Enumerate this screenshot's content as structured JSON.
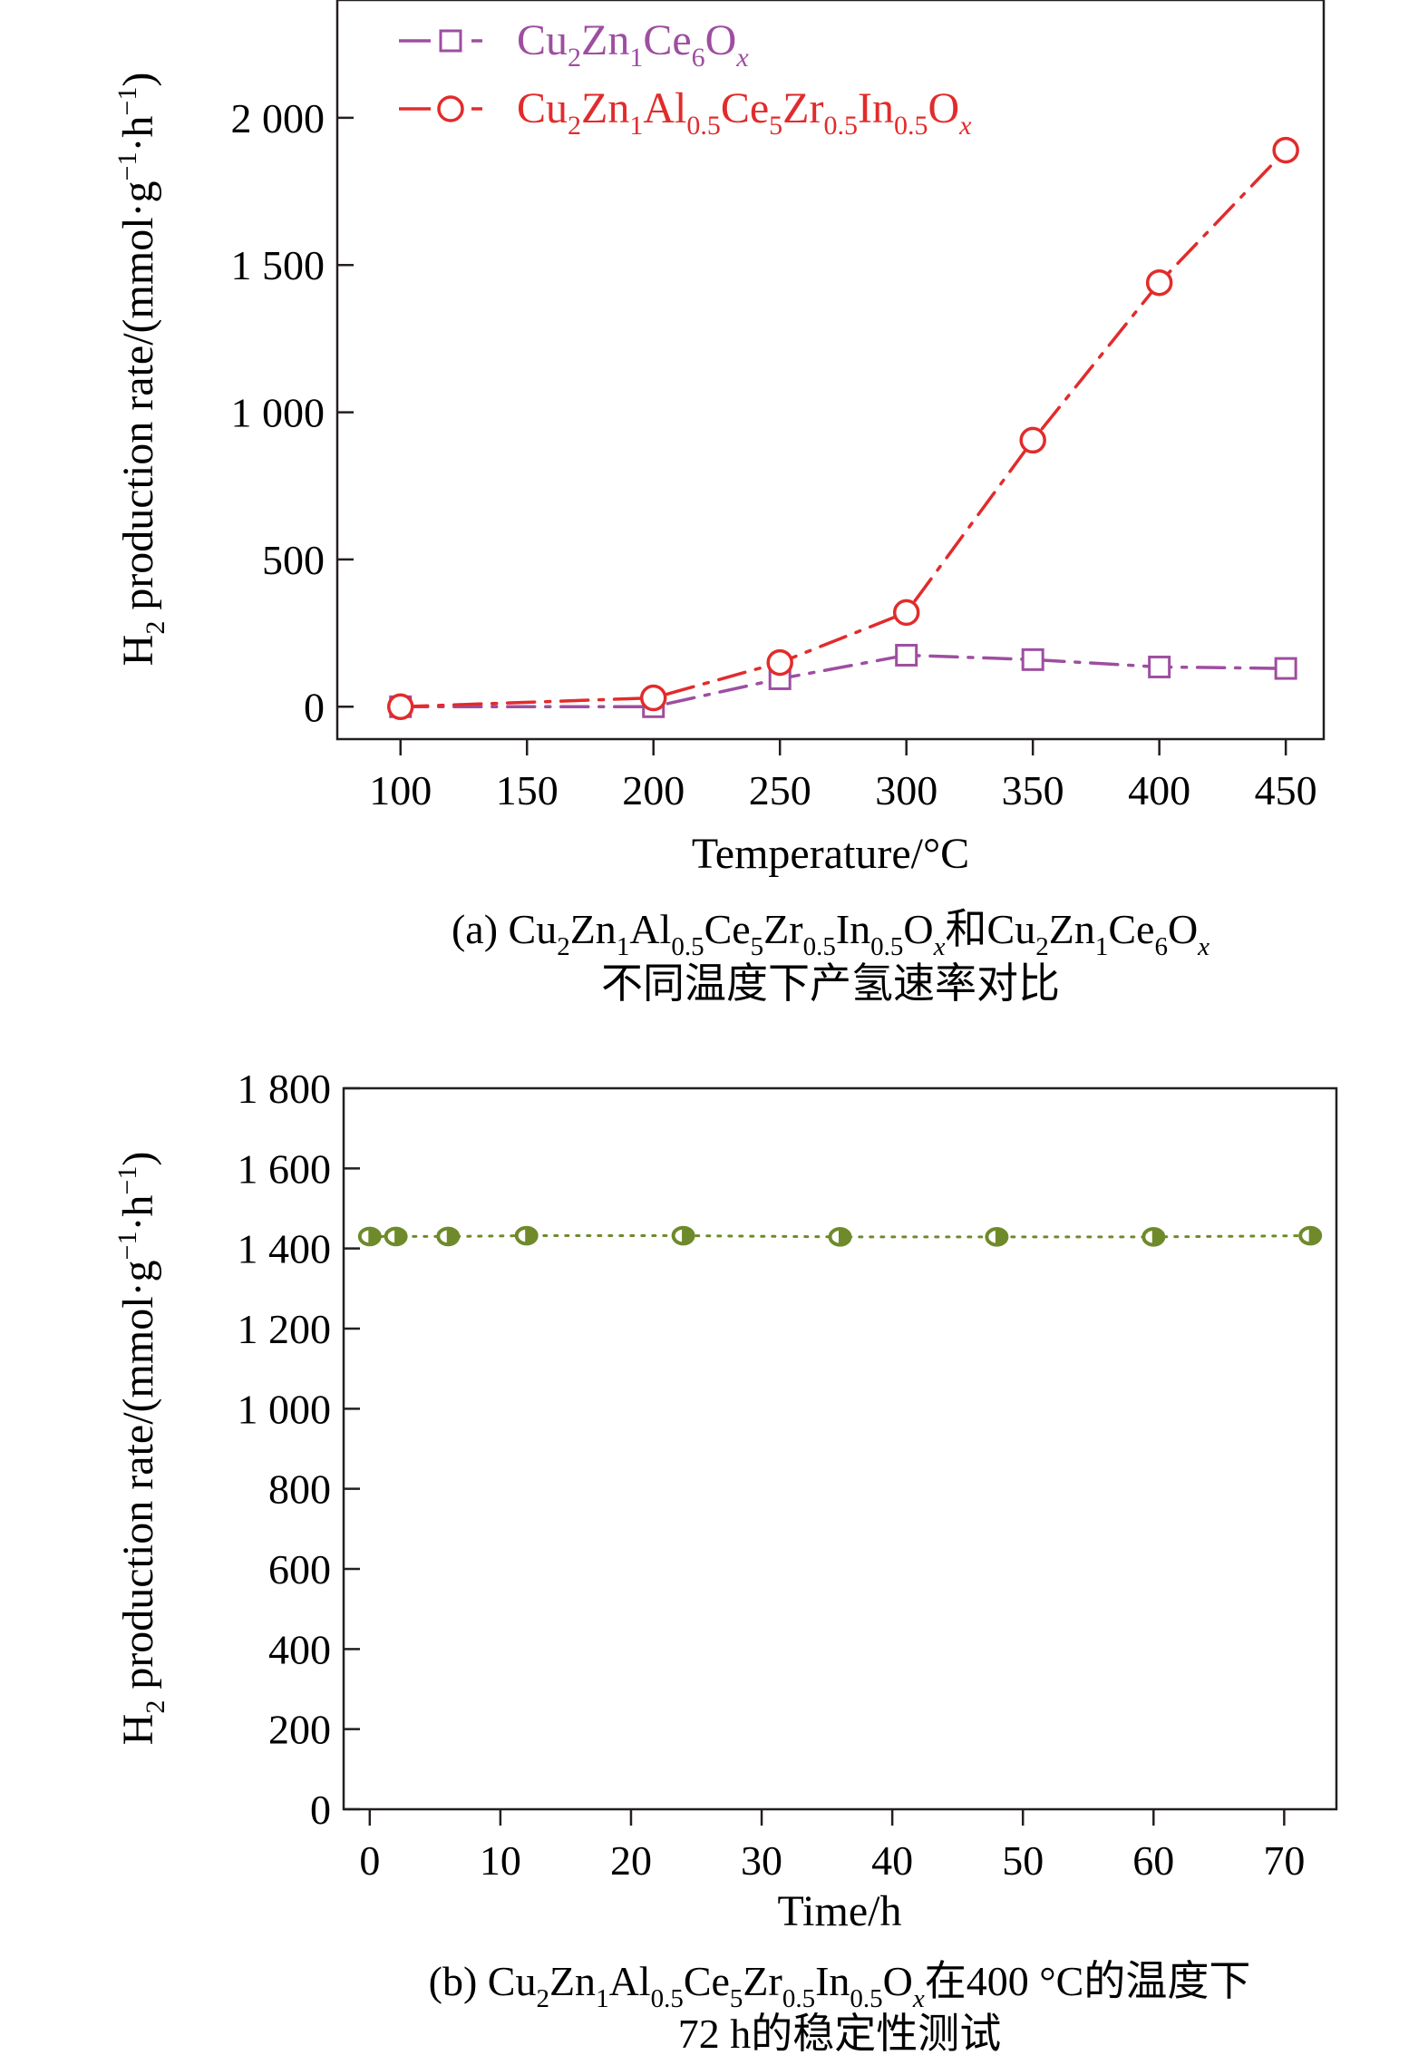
{
  "chart_data": [
    {
      "type": "line",
      "xlabel": "Temperature/°C",
      "ylabel": "H_2 production rate/(mmol·g^-1·h^-1)",
      "xlim": [
        75,
        465
      ],
      "ylim": [
        -110,
        2400
      ],
      "xticks": [
        100,
        150,
        200,
        250,
        300,
        350,
        400,
        450
      ],
      "xtick_labels": [
        "100",
        "150",
        "200",
        "250",
        "300",
        "350",
        "400",
        "450"
      ],
      "yticks": [
        0,
        500,
        1000,
        1500,
        2000
      ],
      "ytick_labels": [
        "0",
        "500",
        "1 000",
        "1 500",
        "2 000"
      ],
      "grid": false,
      "legend_position": "top-left",
      "series": [
        {
          "name": "Cu_2Zn_1Ce_6O_x",
          "color": "#9e4ea0",
          "marker": "square",
          "line_style": "dash-dot",
          "x": [
            100,
            200,
            250,
            300,
            350,
            400,
            450
          ],
          "y": [
            0,
            0,
            95,
            175,
            160,
            135,
            130
          ]
        },
        {
          "name": "Cu_2Zn_1Al_0.5Ce_5Zr_0.5In_0.5O_x",
          "color": "#e22b2b",
          "marker": "circle",
          "line_style": "dash-dot",
          "x": [
            100,
            200,
            250,
            300,
            350,
            400,
            450
          ],
          "y": [
            0,
            30,
            150,
            320,
            905,
            1440,
            1890
          ]
        }
      ],
      "caption": {
        "line1_label": "(a) ",
        "line1_formula_a": "Cu_2Zn_1Al_0.5Ce_5Zr_0.5In_0.5O_x",
        "line1_join": "和",
        "line1_formula_b": "Cu_2Zn_1Ce_6O_x",
        "line2": "不同温度下产氢速率对比"
      }
    },
    {
      "type": "line",
      "xlabel": "Time/h",
      "ylabel": "H_2 production rate/(mmol·g^-1·h^-1)",
      "xlim": [
        -2,
        74
      ],
      "ylim": [
        0,
        1800
      ],
      "xticks": [
        0,
        10,
        20,
        30,
        40,
        50,
        60,
        70
      ],
      "xtick_labels": [
        "0",
        "10",
        "20",
        "30",
        "40",
        "50",
        "60",
        "70"
      ],
      "yticks": [
        0,
        200,
        400,
        600,
        800,
        1000,
        1200,
        1400,
        1600,
        1800
      ],
      "ytick_labels": [
        "0",
        "200",
        "400",
        "600",
        "800",
        "1 000",
        "1 200",
        "1 400",
        "1 600",
        "1 800"
      ],
      "grid": false,
      "series": [
        {
          "color": "#6e8a2a",
          "marker": "half-filled-circle",
          "line_style": "dotted",
          "x": [
            0,
            2,
            6,
            12,
            24,
            36,
            48,
            60,
            72
          ],
          "y": [
            1430,
            1430,
            1430,
            1432,
            1432,
            1429,
            1429,
            1429,
            1432
          ]
        }
      ],
      "caption": {
        "line1_label": "(b) ",
        "line1_formula": "Cu_2Zn_1Al_0.5Ce_5Zr_0.5In_0.5O_x",
        "line1_suffix": "在400 °C的温度下",
        "line2": "72 h的稳定性测试"
      }
    }
  ]
}
